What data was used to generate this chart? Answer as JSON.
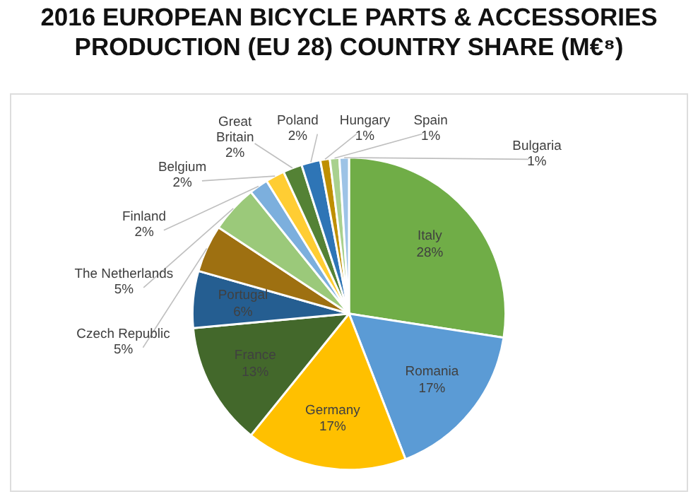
{
  "chart_data": {
    "type": "pie",
    "title": "2016 EUROPEAN BICYCLE PARTS & ACCESSORIES PRODUCTION (EU 28) COUNTRY SHARE (M€⁸)",
    "categories": [
      "Italy",
      "Romania",
      "Germany",
      "France",
      "Portugal",
      "Czech Republic",
      "The Netherlands",
      "Finland",
      "Belgium",
      "Great Britain",
      "Poland",
      "Hungary",
      "Spain",
      "Bulgaria"
    ],
    "values": [
      28,
      17,
      17,
      13,
      6,
      5,
      5,
      2,
      2,
      2,
      2,
      1,
      1,
      1
    ],
    "colors": [
      "#70ad47",
      "#5b9bd5",
      "#ffc000",
      "#43682b",
      "#255e91",
      "#9e7011",
      "#9bc97a",
      "#7cafdd",
      "#ffcd33",
      "#548235",
      "#2e75b6",
      "#bf8f00",
      "#a9d18e",
      "#9dc3e6"
    ],
    "value_labels": [
      "28%",
      "17%",
      "17%",
      "13%",
      "6%",
      "5%",
      "5%",
      "2%",
      "2%",
      "2%",
      "2%",
      "1%",
      "1%",
      "1%"
    ],
    "legend": false
  }
}
